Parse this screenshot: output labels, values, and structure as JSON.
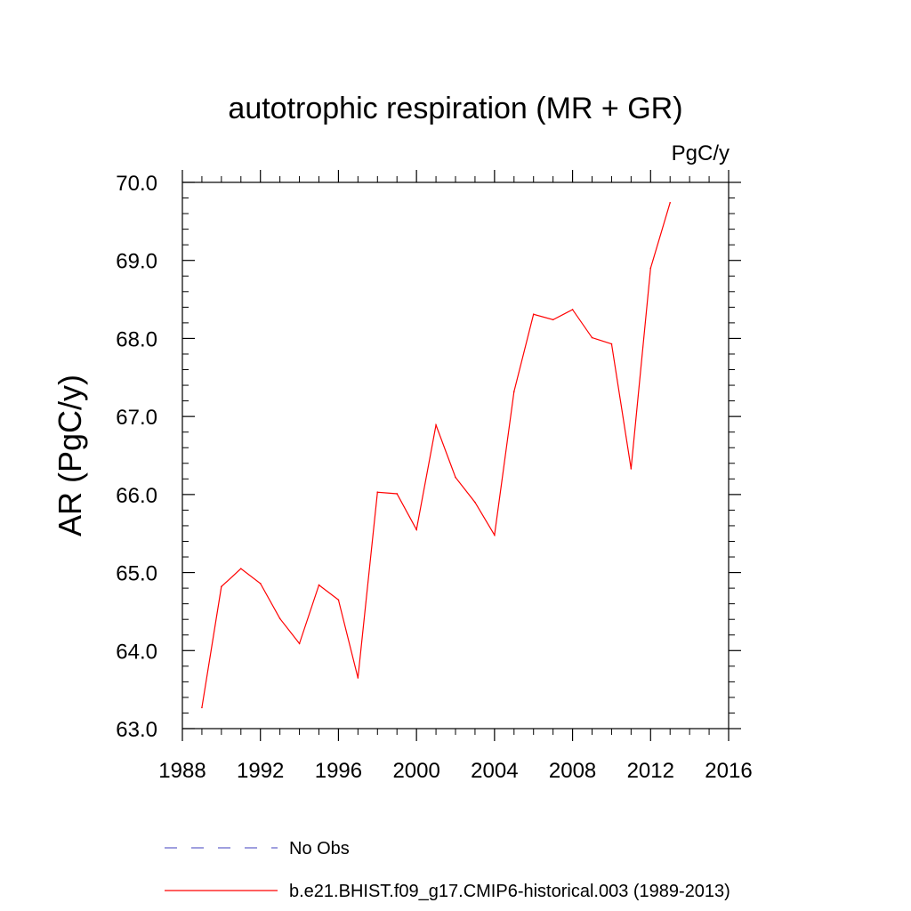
{
  "chart_data": {
    "type": "line",
    "title": "autotrophic respiration (MR + GR)",
    "units_label": "PgC/y",
    "xlabel": "",
    "ylabel": "AR  (PgC/y)",
    "xlim": [
      1988,
      2016
    ],
    "ylim": [
      63.0,
      70.0
    ],
    "x_ticks": [
      "1988",
      "1992",
      "1996",
      "2000",
      "2004",
      "2008",
      "2012",
      "2016"
    ],
    "y_ticks": [
      "63.0",
      "64.0",
      "65.0",
      "66.0",
      "67.0",
      "68.0",
      "69.0",
      "70.0"
    ],
    "series": [
      {
        "name": "b.e21.BHIST.f09_g17.CMIP6-historical.003 (1989-2013)",
        "color": "#ff0000",
        "style": "solid",
        "x": [
          1989,
          1990,
          1991,
          1992,
          1993,
          1994,
          1995,
          1996,
          1997,
          1998,
          1999,
          2000,
          2001,
          2002,
          2003,
          2004,
          2005,
          2006,
          2007,
          2008,
          2009,
          2010,
          2011,
          2012,
          2013
        ],
        "values": [
          63.27,
          64.82,
          65.05,
          64.86,
          64.41,
          64.09,
          64.84,
          64.65,
          63.65,
          66.03,
          66.01,
          65.55,
          66.89,
          66.22,
          65.9,
          65.48,
          67.32,
          68.31,
          68.24,
          68.37,
          68.01,
          67.93,
          66.33,
          68.9,
          69.74
        ]
      }
    ],
    "legend": {
      "position": "bottom",
      "entries": [
        {
          "label": "No Obs",
          "color": "#6666cc",
          "style": "dashed"
        },
        {
          "label": "b.e21.BHIST.f09_g17.CMIP6-historical.003 (1989-2013)",
          "color": "#ff0000",
          "style": "solid"
        }
      ]
    }
  }
}
